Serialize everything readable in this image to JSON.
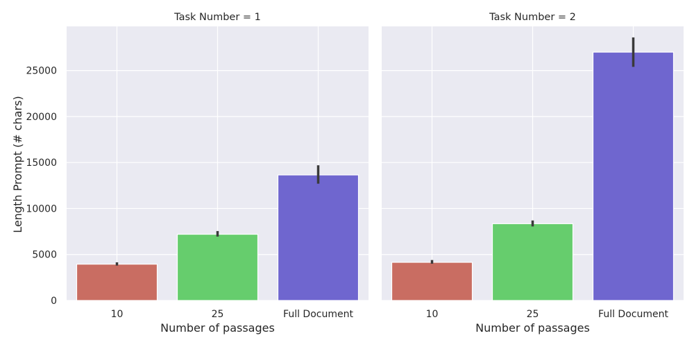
{
  "chart_data": [
    {
      "type": "bar",
      "title": "Task Number = 1",
      "xlabel": "Number of passages",
      "ylabel": "Length Prompt (# chars)",
      "categories": [
        "10",
        "25",
        "Full Document"
      ],
      "values": [
        3950,
        7200,
        13650
      ],
      "error_low": [
        3800,
        6950,
        12700
      ],
      "error_high": [
        4150,
        7550,
        14700
      ],
      "colors": [
        "#c96d62",
        "#66cd6d",
        "#6f66cf"
      ],
      "ylim": [
        0,
        29800
      ],
      "yticks": [
        0,
        5000,
        10000,
        15000,
        20000,
        25000
      ],
      "grid": true
    },
    {
      "type": "bar",
      "title": "Task Number = 2",
      "xlabel": "Number of passages",
      "ylabel": "",
      "categories": [
        "10",
        "25",
        "Full Document"
      ],
      "values": [
        4150,
        8350,
        27000
      ],
      "error_low": [
        4000,
        8050,
        25400
      ],
      "error_high": [
        4400,
        8700,
        28600
      ],
      "colors": [
        "#c96d62",
        "#66cd6d",
        "#6f66cf"
      ],
      "ylim": [
        0,
        29800
      ],
      "yticks": [
        0,
        5000,
        10000,
        15000,
        20000,
        25000
      ],
      "grid": true
    }
  ]
}
